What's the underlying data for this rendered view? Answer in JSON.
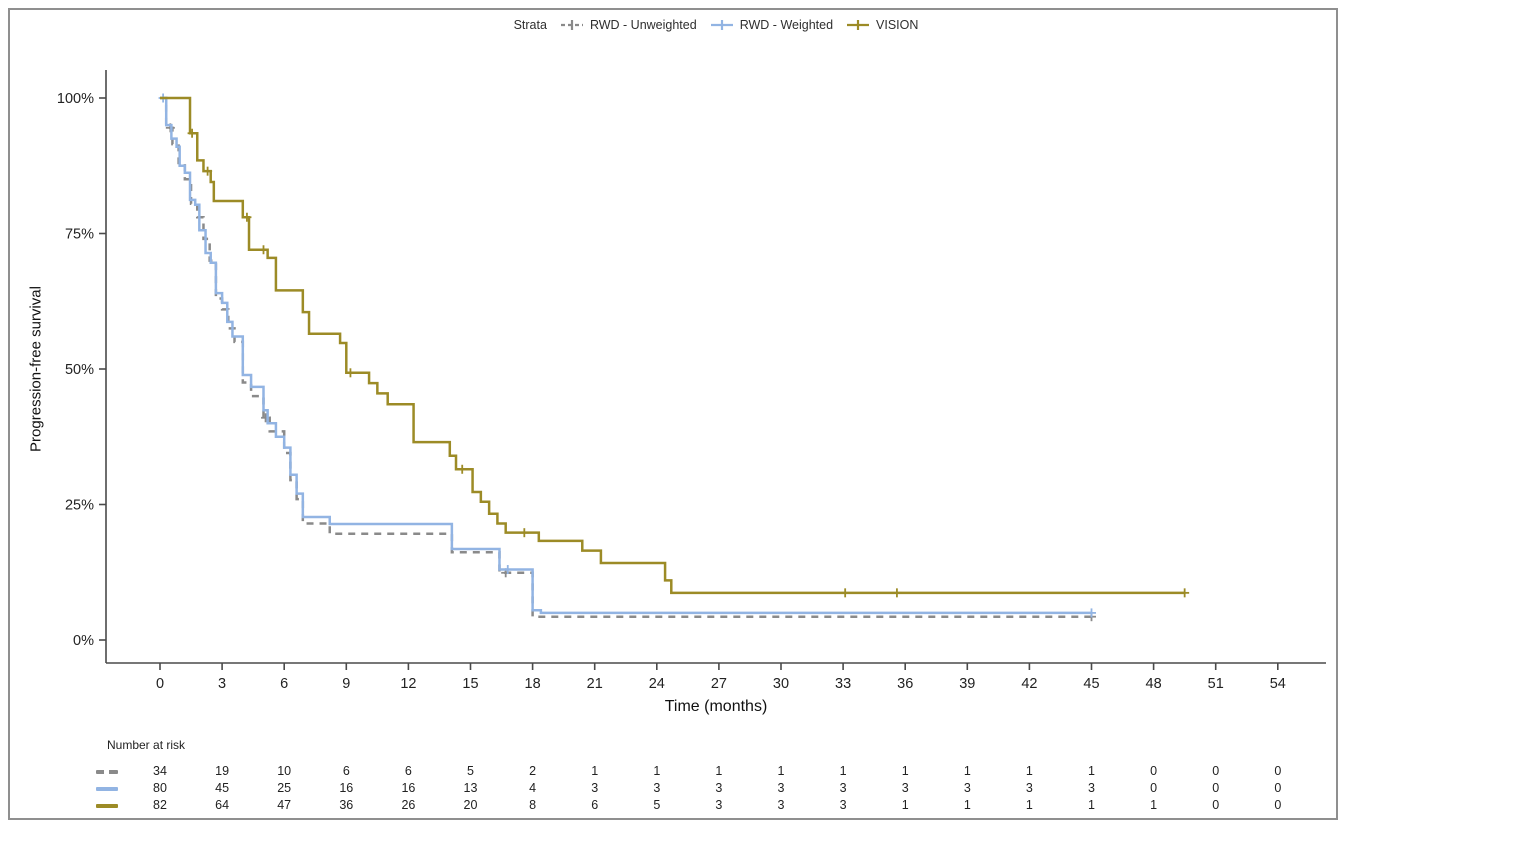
{
  "figure": {
    "background": "#ffffff",
    "border_color": "#8f8f8f"
  },
  "legend": {
    "title": "Strata"
  },
  "axes": {
    "x_title": "Time (months)",
    "y_title": "Progression-free survival",
    "axis_color": "#4a4a4a",
    "tick_text_color": "#222222"
  },
  "chart_data": {
    "type": "line",
    "subtype": "kaplan-meier-step",
    "xlabel": "Time (months)",
    "ylabel": "Progression-free survival",
    "xlim": [
      0,
      54
    ],
    "ylim": [
      0,
      100
    ],
    "grid": false,
    "legend_position": "top-center",
    "xticks": [
      0,
      3,
      6,
      9,
      12,
      15,
      18,
      21,
      24,
      27,
      30,
      33,
      36,
      39,
      42,
      45,
      48,
      51,
      54
    ],
    "yticks": [
      {
        "value": 0,
        "label": "0%"
      },
      {
        "value": 25,
        "label": "25%"
      },
      {
        "value": 50,
        "label": "50%"
      },
      {
        "value": 75,
        "label": "75%"
      },
      {
        "value": 100,
        "label": "100%"
      }
    ],
    "series": [
      {
        "name": "RWD - Unweighted",
        "color": "#8a8a8a",
        "dashed": true,
        "points": [
          [
            0,
            100
          ],
          [
            0.3,
            94.5
          ],
          [
            0.6,
            91.5
          ],
          [
            0.9,
            88
          ],
          [
            1.2,
            85
          ],
          [
            1.5,
            80.5
          ],
          [
            1.8,
            78
          ],
          [
            2.1,
            74
          ],
          [
            2.4,
            70
          ],
          [
            2.7,
            63
          ],
          [
            3.0,
            61
          ],
          [
            3.3,
            57.5
          ],
          [
            3.6,
            55
          ],
          [
            4.0,
            47.5
          ],
          [
            4.4,
            45
          ],
          [
            5.0,
            41
          ],
          [
            5.3,
            38.5
          ],
          [
            6.0,
            34.5
          ],
          [
            6.3,
            29.5
          ],
          [
            6.6,
            26
          ],
          [
            6.9,
            21.5
          ],
          [
            8.2,
            19.6
          ],
          [
            14.1,
            16.2
          ],
          [
            16.4,
            12.4
          ],
          [
            18.0,
            4.3
          ],
          [
            45,
            4.3
          ]
        ],
        "censors": [
          [
            0.5,
            94.5
          ],
          [
            5.1,
            41
          ],
          [
            16.7,
            12.4
          ],
          [
            45,
            4.3
          ]
        ]
      },
      {
        "name": "RWD - Weighted",
        "color": "#92b4e3",
        "dashed": false,
        "points": [
          [
            0,
            100
          ],
          [
            0.3,
            95
          ],
          [
            0.55,
            92.5
          ],
          [
            0.8,
            91
          ],
          [
            0.95,
            87.5
          ],
          [
            1.2,
            86.2
          ],
          [
            1.45,
            81.2
          ],
          [
            1.7,
            80.3
          ],
          [
            1.9,
            75.6
          ],
          [
            2.2,
            71.4
          ],
          [
            2.45,
            69.6
          ],
          [
            2.7,
            64
          ],
          [
            3.0,
            62.2
          ],
          [
            3.25,
            58.7
          ],
          [
            3.5,
            56
          ],
          [
            4.0,
            48.9
          ],
          [
            4.4,
            46.7
          ],
          [
            5.0,
            42.4
          ],
          [
            5.2,
            40
          ],
          [
            5.6,
            37.5
          ],
          [
            6.0,
            35.5
          ],
          [
            6.3,
            30.5
          ],
          [
            6.6,
            27
          ],
          [
            6.9,
            22.7
          ],
          [
            8.2,
            21.4
          ],
          [
            14.1,
            16.8
          ],
          [
            16.4,
            13
          ],
          [
            18.0,
            5.5
          ],
          [
            18.4,
            5.0
          ],
          [
            45,
            5.0
          ]
        ],
        "censors": [
          [
            0.15,
            100
          ],
          [
            16.8,
            13
          ],
          [
            45,
            5.0
          ]
        ]
      },
      {
        "name": "VISION",
        "color": "#9c8b26",
        "dashed": false,
        "points": [
          [
            0,
            100
          ],
          [
            1.45,
            93.5
          ],
          [
            1.8,
            88.5
          ],
          [
            2.1,
            86.5
          ],
          [
            2.45,
            84.5
          ],
          [
            2.6,
            81
          ],
          [
            4.0,
            78
          ],
          [
            4.3,
            72
          ],
          [
            5.2,
            70.5
          ],
          [
            5.6,
            64.5
          ],
          [
            6.9,
            60.5
          ],
          [
            7.2,
            56.5
          ],
          [
            8.7,
            54.8
          ],
          [
            9.0,
            49.3
          ],
          [
            10.1,
            47.4
          ],
          [
            10.5,
            45.5
          ],
          [
            11.0,
            43.5
          ],
          [
            12.25,
            36.5
          ],
          [
            14.0,
            34
          ],
          [
            14.3,
            31.5
          ],
          [
            15.1,
            27.3
          ],
          [
            15.5,
            25.5
          ],
          [
            15.9,
            23.3
          ],
          [
            16.3,
            21.5
          ],
          [
            16.7,
            19.8
          ],
          [
            18.3,
            18.3
          ],
          [
            20.4,
            16.5
          ],
          [
            21.3,
            14.2
          ],
          [
            24.4,
            11
          ],
          [
            24.7,
            8.7
          ],
          [
            49.5,
            8.7
          ]
        ],
        "censors": [
          [
            1.55,
            93.5
          ],
          [
            2.3,
            86.5
          ],
          [
            4.2,
            78
          ],
          [
            5.0,
            72
          ],
          [
            9.2,
            49.3
          ],
          [
            14.6,
            31.5
          ],
          [
            17.6,
            19.8
          ],
          [
            33.1,
            8.7
          ],
          [
            35.6,
            8.7
          ],
          [
            49.5,
            8.7
          ]
        ]
      }
    ],
    "number_at_risk": {
      "label": "Number at risk",
      "times": [
        0,
        3,
        6,
        9,
        12,
        15,
        18,
        21,
        24,
        27,
        30,
        33,
        36,
        39,
        42,
        45,
        48,
        51,
        54
      ],
      "rows": [
        {
          "name": "RWD - Unweighted",
          "color": "#8a8a8a",
          "dashed": true,
          "values": [
            34,
            19,
            10,
            6,
            6,
            5,
            2,
            1,
            1,
            1,
            1,
            1,
            1,
            1,
            1,
            1,
            0,
            0,
            0
          ]
        },
        {
          "name": "RWD - Weighted",
          "color": "#92b4e3",
          "dashed": false,
          "values": [
            80,
            45,
            25,
            16,
            16,
            13,
            4,
            3,
            3,
            3,
            3,
            3,
            3,
            3,
            3,
            3,
            0,
            0,
            0
          ]
        },
        {
          "name": "VISION",
          "color": "#9c8b26",
          "dashed": false,
          "values": [
            82,
            64,
            47,
            36,
            26,
            20,
            8,
            6,
            5,
            3,
            3,
            3,
            1,
            1,
            1,
            1,
            1,
            0,
            0
          ]
        }
      ]
    }
  }
}
